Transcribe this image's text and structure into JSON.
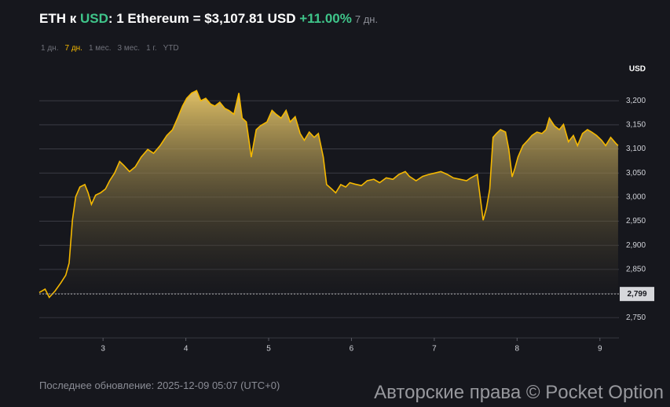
{
  "header": {
    "pair_prefix": "ETH к ",
    "pair_quote": "USD",
    "rate_text": ": 1 Ethereum = $3,107.81 USD",
    "change": "+11.00%",
    "period": "7 дн."
  },
  "tabs": [
    "1 дн.",
    "7 дн.",
    "1 мес.",
    "3 мес.",
    "1 г.",
    "YTD"
  ],
  "active_tab": 1,
  "chart_data": {
    "type": "area",
    "y_unit": "USD",
    "color": "#f5b800",
    "x": [
      2.23,
      2.3,
      2.35,
      2.42,
      2.49,
      2.55,
      2.59,
      2.63,
      2.67,
      2.72,
      2.78,
      2.82,
      2.86,
      2.91,
      2.97,
      3.03,
      3.08,
      3.14,
      3.2,
      3.25,
      3.32,
      3.39,
      3.46,
      3.54,
      3.61,
      3.69,
      3.77,
      3.84,
      3.9,
      3.96,
      4.01,
      4.07,
      4.13,
      4.18,
      4.24,
      4.3,
      4.35,
      4.41,
      4.47,
      4.52,
      4.58,
      4.64,
      4.68,
      4.73,
      4.79,
      4.85,
      4.9,
      4.98,
      5.04,
      5.09,
      5.15,
      5.21,
      5.26,
      5.32,
      5.38,
      5.43,
      5.49,
      5.55,
      5.6,
      5.66,
      5.7,
      5.76,
      5.81,
      5.87,
      5.93,
      5.98,
      6.04,
      6.12,
      6.19,
      6.27,
      6.34,
      6.42,
      6.5,
      6.57,
      6.65,
      6.7,
      6.78,
      6.86,
      6.93,
      7.01,
      7.08,
      7.16,
      7.23,
      7.31,
      7.39,
      7.44,
      7.52,
      7.56,
      7.59,
      7.63,
      7.67,
      7.71,
      7.75,
      7.8,
      7.86,
      7.9,
      7.94,
      7.97,
      8.01,
      8.07,
      8.13,
      8.18,
      8.24,
      8.3,
      8.35,
      8.39,
      8.45,
      8.51,
      8.56,
      8.62,
      8.68,
      8.73,
      8.79,
      8.85,
      8.9,
      8.96,
      9.02,
      9.07,
      9.13,
      9.19,
      9.22
    ],
    "values": [
      2802,
      2809,
      2792,
      2805,
      2822,
      2838,
      2863,
      2952,
      3001,
      3021,
      3026,
      3009,
      2985,
      3004,
      3009,
      3017,
      3034,
      3050,
      3074,
      3066,
      3053,
      3063,
      3083,
      3099,
      3091,
      3107,
      3128,
      3140,
      3164,
      3189,
      3205,
      3216,
      3221,
      3200,
      3205,
      3193,
      3189,
      3197,
      3184,
      3180,
      3172,
      3216,
      3164,
      3156,
      3083,
      3140,
      3148,
      3156,
      3180,
      3172,
      3164,
      3180,
      3156,
      3167,
      3132,
      3118,
      3135,
      3124,
      3132,
      3083,
      3026,
      3017,
      3009,
      3026,
      3021,
      3030,
      3027,
      3024,
      3034,
      3037,
      3030,
      3040,
      3037,
      3047,
      3053,
      3043,
      3034,
      3043,
      3047,
      3050,
      3053,
      3047,
      3040,
      3037,
      3034,
      3040,
      3047,
      2993,
      2952,
      2977,
      3017,
      3124,
      3132,
      3140,
      3135,
      3099,
      3042,
      3058,
      3083,
      3107,
      3118,
      3128,
      3135,
      3132,
      3140,
      3164,
      3148,
      3140,
      3151,
      3115,
      3128,
      3107,
      3132,
      3140,
      3135,
      3128,
      3118,
      3107,
      3124,
      3112,
      3107
    ],
    "xlim": [
      2.23,
      9.23
    ],
    "xticks": [
      3,
      4,
      5,
      6,
      7,
      8,
      9
    ],
    "ylim": [
      2708,
      3246
    ],
    "yticks": [
      {
        "value": 2750,
        "label": "2,750"
      },
      {
        "value": 2800,
        "label": "2,800"
      },
      {
        "value": 2850,
        "label": "2,850"
      },
      {
        "value": 2900,
        "label": "2,900"
      },
      {
        "value": 2950,
        "label": "2,950"
      },
      {
        "value": 3000,
        "label": "3,000"
      },
      {
        "value": 3050,
        "label": "3,050"
      },
      {
        "value": 3100,
        "label": "3,100"
      },
      {
        "value": 3150,
        "label": "3,150"
      },
      {
        "value": 3200,
        "label": "3,200"
      }
    ],
    "reference": {
      "value": 2799,
      "label": "2,799"
    },
    "grid": true
  },
  "footer": {
    "updated": "Последнее обновление: 2025-12-09 05:07 (UTC+0)",
    "watermark": "Авторские права © Pocket Option"
  }
}
